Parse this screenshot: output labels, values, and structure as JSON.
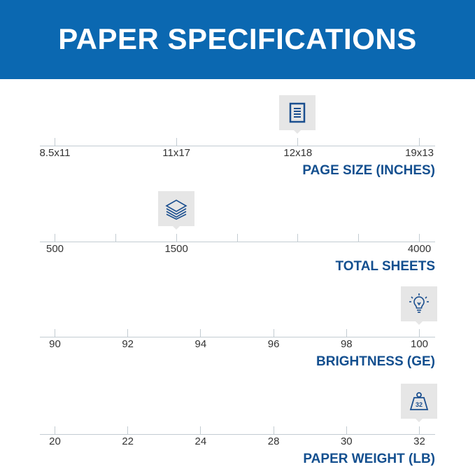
{
  "header": {
    "title": "PAPER SPECIFICATIONS"
  },
  "colors": {
    "header": "#0b68b1",
    "title": "#134f8f",
    "marker": "#e6e6e6"
  },
  "rows": [
    {
      "title": "PAGE SIZE (INCHES)",
      "icon": "document-icon",
      "ticks": 4,
      "labels": [
        "8.5x11",
        "11x17",
        "12x18",
        "19x13"
      ],
      "label_ticks": [
        0,
        1,
        2,
        3
      ],
      "selected": "12x18",
      "selected_tick": 2
    },
    {
      "title": "TOTAL SHEETS",
      "icon": "paper-stack-icon",
      "ticks": 7,
      "labels": [
        "500",
        "1500",
        "4000"
      ],
      "label_ticks": [
        0,
        2,
        6
      ],
      "selected": "1500",
      "selected_tick": 2
    },
    {
      "title": "BRIGHTNESS (GE)",
      "icon": "lightbulb-icon",
      "ticks": 6,
      "labels": [
        "90",
        "92",
        "94",
        "96",
        "98",
        "100"
      ],
      "label_ticks": [
        0,
        1,
        2,
        3,
        4,
        5
      ],
      "selected": "100",
      "selected_tick": 5
    },
    {
      "title": "PAPER WEIGHT (LB)",
      "icon": "weight-icon",
      "icon_text": "32",
      "ticks": 6,
      "labels": [
        "20",
        "22",
        "24",
        "28",
        "30",
        "32"
      ],
      "label_ticks": [
        0,
        1,
        2,
        3,
        4,
        5
      ],
      "selected": "32",
      "selected_tick": 5
    }
  ]
}
